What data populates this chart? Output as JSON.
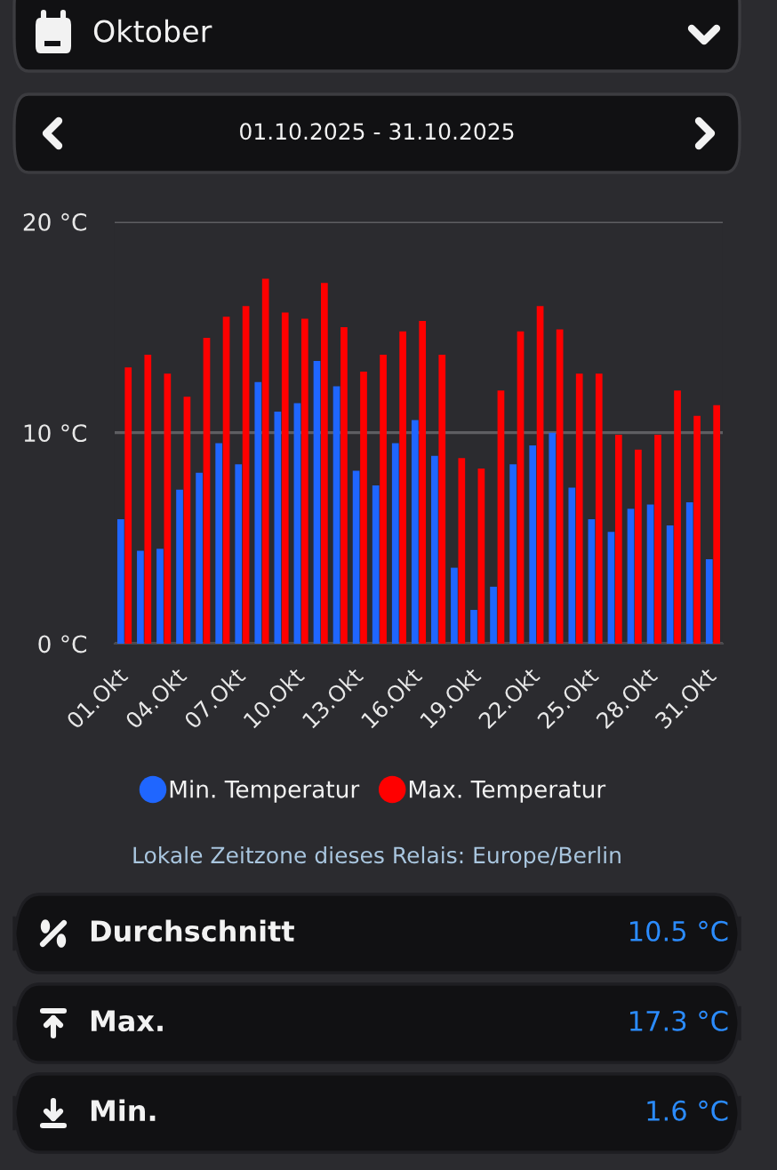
{
  "chart_data": {
    "type": "bar",
    "title": "Oktober",
    "subtitle": "01.10.2025 - 31.10.2025",
    "categories": [
      "01.Okt",
      null,
      null,
      "04.Okt",
      null,
      null,
      "07.Okt",
      null,
      null,
      "10.Okt",
      null,
      null,
      "13.Okt",
      null,
      null,
      "16.Okt",
      null,
      null,
      "19.Okt",
      null,
      null,
      "22.Okt",
      null,
      null,
      "25.Okt",
      null,
      null,
      "28.Okt",
      null,
      null,
      "31.Okt"
    ],
    "series": [
      {
        "name": "Min. Temperatur",
        "color": "#1f66ff",
        "values": [
          5.9,
          4.4,
          4.5,
          7.3,
          8.1,
          9.5,
          8.5,
          12.4,
          11.0,
          11.4,
          13.4,
          12.2,
          8.2,
          7.5,
          9.5,
          10.6,
          8.9,
          3.6,
          1.6,
          2.7,
          8.5,
          9.4,
          10.0,
          7.4,
          5.9,
          5.3,
          6.4,
          6.6,
          5.6,
          6.7,
          4.0
        ]
      },
      {
        "name": "Max. Temperatur",
        "color": "#ff0000",
        "values": [
          13.1,
          13.7,
          12.8,
          11.7,
          14.5,
          15.5,
          16.0,
          17.3,
          15.7,
          15.4,
          17.1,
          15.0,
          12.9,
          13.7,
          14.8,
          15.3,
          13.7,
          8.8,
          8.3,
          12.0,
          14.8,
          16.0,
          14.9,
          12.8,
          12.8,
          9.9,
          9.2,
          9.9,
          12.0,
          10.8,
          11.3
        ]
      }
    ],
    "ylim": [
      0,
      20
    ],
    "yticks": [
      {
        "value": 0,
        "label": "0 °C"
      },
      {
        "value": 10,
        "label": "10 °C"
      },
      {
        "value": 20,
        "label": "20 °C"
      }
    ],
    "grid": "y",
    "legend": "bottom",
    "annotations": [
      "Lokale Zeitzone dieses Relais: Europe/Berlin",
      "Durchschnitt",
      "10.5 °C",
      "Max.",
      "17.3 °C",
      "Min.",
      "1.6 °C"
    ]
  }
}
